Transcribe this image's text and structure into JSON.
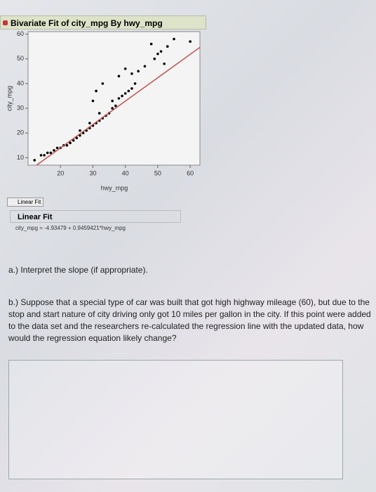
{
  "header": {
    "title": "Bivariate Fit of city_mpg By hwy_mpg"
  },
  "chart_data": {
    "type": "scatter",
    "x_label": "hwy_mpg",
    "y_label": "city_mpg",
    "x": [
      12,
      14,
      15,
      16,
      17,
      18,
      19,
      20,
      21,
      22,
      23,
      24,
      25,
      26,
      26,
      27,
      28,
      29,
      29,
      30,
      31,
      32,
      32,
      33,
      34,
      35,
      36,
      36,
      37,
      38,
      39,
      40,
      41,
      42,
      43,
      30,
      31,
      33,
      38,
      40,
      42,
      44,
      46,
      48,
      49,
      50,
      51,
      52,
      53,
      55,
      60
    ],
    "values": [
      9,
      11,
      11,
      12,
      12,
      13,
      14,
      14,
      15,
      15,
      16,
      17,
      18,
      19,
      21,
      20,
      21,
      22,
      24,
      23,
      24,
      25,
      28,
      26,
      27,
      28,
      30,
      33,
      31,
      34,
      35,
      36,
      37,
      38,
      40,
      33,
      37,
      40,
      43,
      46,
      44,
      45,
      47,
      56,
      50,
      52,
      53,
      48,
      55,
      58,
      57
    ],
    "color": "#000000",
    "xlim": [
      10,
      63
    ],
    "ylim": [
      7,
      61
    ],
    "xticks": [
      20,
      30,
      40,
      50,
      60
    ],
    "yticks": [
      10,
      20,
      30,
      40,
      50,
      60
    ],
    "fit": {
      "intercept": -4.93479,
      "slope": 0.9459421,
      "color": "#c0504d"
    },
    "legend": "Linear Fit"
  },
  "fit_report": {
    "title": "Linear Fit",
    "equation": "city_mpg = -4.93479 + 0.9459421*hwy_mpg"
  },
  "questions": {
    "a": "a.) Interpret the slope (if appropriate).",
    "b": "b.) Suppose that a special type of car was built that got high highway mileage (60), but due to the stop and start nature of city driving only got 10 miles per gallon in the city. If this point were added to the data set and the researchers re-calculated the regression line with the updated data, how would the regression equation likely change?"
  }
}
